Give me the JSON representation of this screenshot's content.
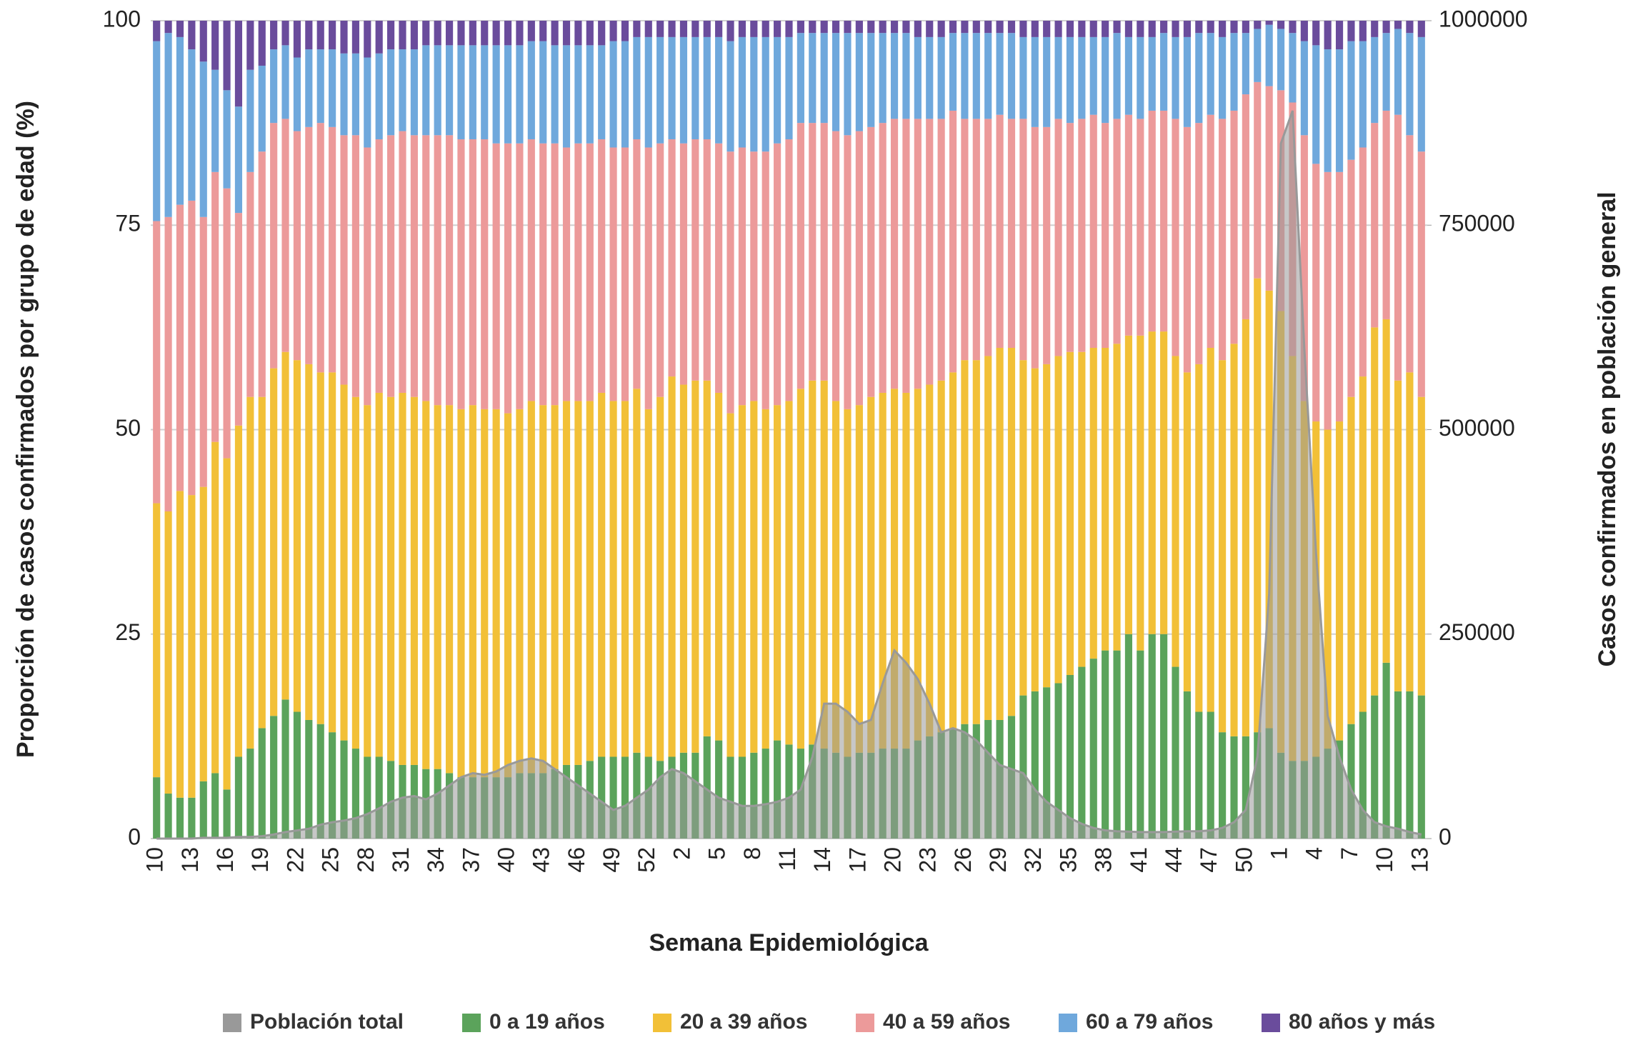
{
  "chart_data": {
    "type": "bar",
    "stacked": true,
    "ylabel": "Proporción de casos confirmados por grupo de edad (%)",
    "y2label": "Casos confirmados en población general",
    "xlabel": "Semana Epidemiológica",
    "ylim": [
      0,
      100
    ],
    "yticks": [
      0,
      25,
      50,
      75,
      100
    ],
    "y2lim": [
      0,
      1000000
    ],
    "y2ticks": [
      0,
      250000,
      500000,
      750000,
      1000000
    ],
    "grid": true,
    "legend": "bottom",
    "categories": [
      "10",
      null,
      null,
      "13",
      null,
      null,
      "16",
      null,
      null,
      "19",
      null,
      null,
      "22",
      null,
      null,
      "25",
      null,
      null,
      "28",
      null,
      null,
      "31",
      null,
      null,
      "34",
      null,
      null,
      "37",
      null,
      null,
      "40",
      null,
      null,
      "43",
      null,
      null,
      "46",
      null,
      null,
      "49",
      null,
      null,
      "52",
      null,
      null,
      "2",
      null,
      null,
      "5",
      null,
      null,
      "8",
      null,
      null,
      "11",
      null,
      null,
      "14",
      null,
      null,
      "17",
      null,
      null,
      "20",
      null,
      null,
      "23",
      null,
      null,
      "26",
      null,
      null,
      "29",
      null,
      null,
      "32",
      null,
      null,
      "35",
      null,
      null,
      "38",
      null,
      null,
      "41",
      null,
      null,
      "44",
      null,
      null,
      "47",
      null,
      null,
      "50",
      null,
      null,
      "1",
      null,
      null,
      "4",
      null,
      null,
      "7",
      null,
      null,
      "10",
      null,
      null,
      "13"
    ],
    "series": [
      {
        "name": "Población total",
        "type": "area",
        "axis": "y2",
        "color": "#999999",
        "values": [
          0,
          0,
          0,
          0,
          1000,
          1000,
          1000,
          2000,
          2000,
          3000,
          5000,
          8000,
          10000,
          12000,
          17000,
          20000,
          22000,
          25000,
          30000,
          37000,
          45000,
          50000,
          52000,
          48000,
          55000,
          65000,
          75000,
          80000,
          78000,
          82000,
          90000,
          95000,
          98000,
          95000,
          85000,
          75000,
          65000,
          55000,
          45000,
          35000,
          40000,
          50000,
          60000,
          75000,
          85000,
          80000,
          70000,
          60000,
          50000,
          45000,
          40000,
          40000,
          42000,
          45000,
          50000,
          60000,
          100000,
          165000,
          165000,
          155000,
          140000,
          145000,
          190000,
          230000,
          215000,
          195000,
          165000,
          130000,
          135000,
          130000,
          120000,
          105000,
          90000,
          85000,
          80000,
          60000,
          45000,
          35000,
          25000,
          18000,
          13000,
          10000,
          9000,
          8500,
          8000,
          8000,
          8000,
          8500,
          9000,
          9000,
          10000,
          13000,
          20000,
          35000,
          100000,
          300000,
          850000,
          890000,
          600000,
          350000,
          150000,
          100000,
          60000,
          35000,
          20000,
          15000,
          12000,
          8000,
          5000
        ]
      },
      {
        "name": "0 a 19 años",
        "color": "#5ba35b",
        "values": [
          7.5,
          5.5,
          5,
          5,
          7,
          8,
          6,
          10,
          11,
          13.5,
          15,
          17,
          15.5,
          14.5,
          14,
          13,
          12,
          11,
          10,
          10,
          9.5,
          9,
          9,
          8.5,
          8.5,
          8,
          7.5,
          7.5,
          7.5,
          7.5,
          7.5,
          8,
          8,
          8,
          8.5,
          9,
          9,
          9.5,
          10,
          10,
          10,
          10.5,
          10,
          9.5,
          10,
          10.5,
          10.5,
          12.5,
          12,
          10,
          10,
          10.5,
          11,
          12,
          11.5,
          11,
          11.5,
          11,
          10.5,
          10,
          10.5,
          10.5,
          11,
          11,
          11,
          12,
          12.5,
          13,
          13.5,
          14,
          14,
          14.5,
          14.5,
          15,
          17.5,
          18,
          18.5,
          19,
          20,
          21,
          22,
          23,
          23,
          25,
          23,
          25,
          25,
          21,
          18,
          15.5,
          15.5,
          13,
          12.5,
          12.5,
          13,
          13.5,
          10.5,
          9.5,
          9.5,
          10,
          11,
          12,
          14,
          15.5,
          17.5,
          21.5,
          18,
          18,
          17.5
        ]
      },
      {
        "name": "20 a 39 años",
        "color": "#f2c037",
        "values": [
          33.5,
          34.5,
          37.5,
          37,
          36,
          40.5,
          40.5,
          40.5,
          43,
          40.5,
          42.5,
          42.5,
          43,
          43.5,
          43,
          44,
          43.5,
          43,
          43,
          44.5,
          44.5,
          45.5,
          45,
          45,
          44.5,
          45,
          45,
          45.5,
          45,
          45,
          44.5,
          44.5,
          45.5,
          45,
          44.5,
          44.5,
          44.5,
          44,
          44.5,
          43.5,
          43.5,
          44.5,
          42.5,
          44.5,
          46.5,
          45,
          45.5,
          43.5,
          42.5,
          42,
          43,
          43,
          41.5,
          41,
          42,
          44,
          44.5,
          45,
          43,
          42.5,
          42.5,
          43.5,
          43.5,
          44,
          43.5,
          43,
          43,
          43,
          43.5,
          44.5,
          44.5,
          44.5,
          45.5,
          45,
          41,
          39.5,
          39.5,
          40,
          39.5,
          38.5,
          38,
          37,
          37.5,
          36.5,
          38.5,
          37,
          37,
          38,
          39,
          42.5,
          44.5,
          45.5,
          48,
          51,
          55.5,
          53.5,
          54,
          49.5,
          44,
          41,
          39,
          39,
          40,
          41,
          45,
          42,
          38,
          39,
          36.5
        ]
      },
      {
        "name": "40 a 59 años",
        "color": "#ec9a9a",
        "values": [
          34.5,
          36,
          35,
          36,
          33,
          33,
          33,
          26,
          27.5,
          30,
          30,
          28.5,
          28,
          29,
          30.5,
          30,
          30.5,
          32,
          31.5,
          31,
          32,
          32,
          32,
          32.5,
          33,
          33,
          33,
          32.5,
          33,
          32.5,
          33,
          32.5,
          32,
          32,
          32,
          31,
          31.5,
          31.5,
          31,
          31,
          31,
          30.5,
          32,
          31,
          29,
          29.5,
          29.5,
          29.5,
          30.5,
          32,
          31.5,
          30.5,
          31.5,
          32,
          32,
          32.5,
          31.5,
          31.5,
          33,
          33.5,
          33.5,
          33,
          33,
          33,
          33.5,
          33,
          32.5,
          32,
          32,
          29.5,
          29.5,
          29,
          28.5,
          28,
          29.5,
          29.5,
          29,
          29,
          28,
          28.5,
          28.5,
          27.5,
          27.5,
          27,
          26.5,
          27,
          27,
          29,
          30,
          29.5,
          28.5,
          29.5,
          28.5,
          27.5,
          24,
          25,
          27,
          31,
          32.5,
          31.5,
          31.5,
          30.5,
          29,
          28,
          25,
          25.5,
          32.5,
          29,
          30
        ]
      },
      {
        "name": "60 a 79 años",
        "color": "#6fa8dc",
        "values": [
          22,
          22.5,
          20.5,
          18.5,
          19,
          12.5,
          12,
          13,
          12.5,
          10.5,
          9,
          9,
          9,
          9.5,
          9,
          9.5,
          10,
          10,
          11,
          10.5,
          10.5,
          10,
          10.5,
          11,
          11,
          11,
          11.5,
          11.5,
          11.5,
          12,
          12,
          12,
          12,
          12.5,
          12,
          12.5,
          12,
          12,
          11.5,
          13,
          13,
          12.5,
          13.5,
          13,
          12.5,
          13,
          12.5,
          12.5,
          13,
          13.5,
          13.5,
          14,
          14,
          13,
          12.5,
          11,
          11,
          11,
          12,
          12.5,
          12,
          11.5,
          11,
          10.5,
          10.5,
          10,
          10,
          10,
          9.5,
          10.5,
          10.5,
          10.5,
          10,
          10.5,
          10,
          11,
          11,
          10,
          10.5,
          10,
          9.5,
          10.5,
          10.5,
          9.5,
          10,
          9,
          9.5,
          10,
          11,
          11,
          10,
          10,
          9.5,
          7.5,
          6.5,
          7.5,
          7.5,
          8.5,
          11.5,
          14.5,
          15,
          15,
          14.5,
          13,
          10.5,
          9.5,
          10.5,
          12.5,
          14
        ]
      },
      {
        "name": "80 años y más",
        "color": "#6a4c9c",
        "values": [
          2.5,
          1.5,
          2,
          3.5,
          5,
          6,
          8.5,
          10.5,
          6,
          5.5,
          3.5,
          3,
          4.5,
          3.5,
          3.5,
          3.5,
          4,
          4,
          4.5,
          4,
          3.5,
          3.5,
          3.5,
          3,
          3,
          3,
          3,
          3,
          3,
          3,
          3,
          3,
          2.5,
          2.5,
          3,
          3,
          3,
          3,
          3,
          2.5,
          2.5,
          2,
          2,
          2,
          2,
          2,
          2,
          2,
          2,
          2.5,
          2,
          2,
          2,
          2,
          2,
          1.5,
          1.5,
          1.5,
          1.5,
          1.5,
          1.5,
          1.5,
          1.5,
          1.5,
          1.5,
          2,
          2,
          2,
          1.5,
          1.5,
          1.5,
          1.5,
          1.5,
          1.5,
          2,
          2,
          2,
          2,
          2,
          2,
          2,
          2,
          1.5,
          2,
          2,
          2,
          1.5,
          2,
          2,
          1.5,
          1.5,
          2,
          1.5,
          1.5,
          1,
          0.5,
          1,
          1.5,
          2.5,
          3,
          3.5,
          3.5,
          2.5,
          2.5,
          2,
          1.5,
          1,
          1.5,
          2
        ]
      }
    ]
  }
}
